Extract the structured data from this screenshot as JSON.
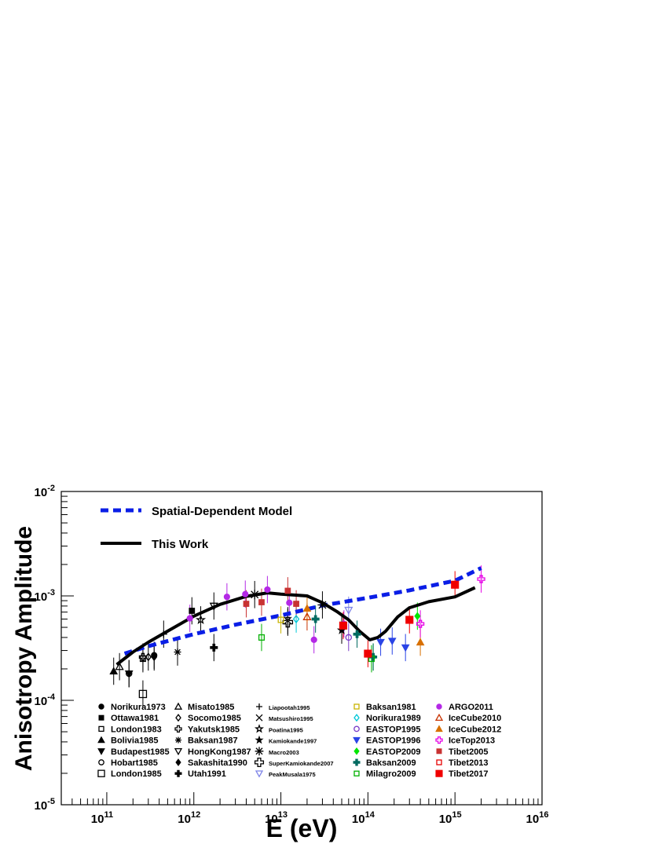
{
  "chart_data": {
    "type": "scatter",
    "title": "",
    "xlabel": "E (eV)",
    "ylabel": "Anisotropy Amplitude",
    "xscale": "log",
    "yscale": "log",
    "xlim": [
      30000000000.0,
      1e+16
    ],
    "ylim": [
      1e-05,
      0.01
    ],
    "grid": false,
    "x_ticks": [
      {
        "value": 100000000000.0,
        "base": "10",
        "exp": "11"
      },
      {
        "value": 1000000000000.0,
        "base": "10",
        "exp": "12"
      },
      {
        "value": 10000000000000.0,
        "base": "10",
        "exp": "13"
      },
      {
        "value": 100000000000000.0,
        "base": "10",
        "exp": "14"
      },
      {
        "value": 1000000000000000.0,
        "base": "10",
        "exp": "15"
      },
      {
        "value": 1e+16,
        "base": "10",
        "exp": "16"
      }
    ],
    "y_ticks": [
      {
        "value": 1e-05,
        "base": "10",
        "exp": "-5"
      },
      {
        "value": 0.0001,
        "base": "10",
        "exp": "-4"
      },
      {
        "value": 0.001,
        "base": "10",
        "exp": "-3"
      },
      {
        "value": 0.01,
        "base": "10",
        "exp": "-2"
      }
    ],
    "curves": [
      {
        "name": "Spatial-Dependent Model",
        "style": "dashed",
        "color": "#0a1ee6",
        "points": [
          [
            160000000000.0,
            0.00028
          ],
          [
            300000000000.0,
            0.00033
          ],
          [
            1000000000000.0,
            0.00043
          ],
          [
            3000000000000.0,
            0.00053
          ],
          [
            10000000000000.0,
            0.00065
          ],
          [
            30000000000000.0,
            0.00081
          ],
          [
            100000000000000.0,
            0.00096
          ],
          [
            300000000000000.0,
            0.00113
          ],
          [
            1000000000000000.0,
            0.0014
          ],
          [
            2000000000000000.0,
            0.00185
          ]
        ]
      },
      {
        "name": "This Work",
        "style": "solid",
        "color": "#000000",
        "points": [
          [
            130000000000.0,
            0.00022
          ],
          [
            200000000000.0,
            0.00029
          ],
          [
            300000000000.0,
            0.00036
          ],
          [
            500000000000.0,
            0.00046
          ],
          [
            1000000000000.0,
            0.00064
          ],
          [
            2000000000000.0,
            0.00083
          ],
          [
            4000000000000.0,
            0.00099
          ],
          [
            7000000000000.0,
            0.00107
          ],
          [
            10000000000000.0,
            0.00104
          ],
          [
            20000000000000.0,
            0.001
          ],
          [
            30000000000000.0,
            0.00086
          ],
          [
            45000000000000.0,
            0.0007
          ],
          [
            60000000000000.0,
            0.00059
          ],
          [
            80000000000000.0,
            0.00046
          ],
          [
            105000000000000.0,
            0.00038
          ],
          [
            130000000000000.0,
            0.0004
          ],
          [
            160000000000000.0,
            0.00046
          ],
          [
            220000000000000.0,
            0.00063
          ],
          [
            300000000000000.0,
            0.00077
          ],
          [
            500000000000000.0,
            0.00088
          ],
          [
            1000000000000000.0,
            0.00098
          ],
          [
            1700000000000000.0,
            0.0012
          ]
        ]
      }
    ],
    "series": [
      {
        "name": "Norikura1973",
        "marker": "circle-filled",
        "color": "#000000",
        "points": [
          [
            350000000000.0,
            0.00027
          ]
        ]
      },
      {
        "name": "Ottawa1981",
        "marker": "square-filled",
        "color": "#000000",
        "points": [
          [
            950000000000.0,
            0.00072
          ]
        ]
      },
      {
        "name": "London1983",
        "marker": "square-open",
        "color": "#000000",
        "points": [
          [
            260000000000.0,
            0.00025
          ]
        ]
      },
      {
        "name": "Bolivia1985",
        "marker": "triangle-up-filled",
        "color": "#000000",
        "points": [
          [
            120000000000.0,
            0.00019
          ]
        ]
      },
      {
        "name": "Budapest1985",
        "marker": "triangle-down-filled",
        "color": "#000000",
        "points": [
          [
            180000000000.0,
            0.00018
          ]
        ]
      },
      {
        "name": "Hobart1985",
        "marker": "circle-open",
        "color": "#000000",
        "points": [
          [
            180000000000.0,
            0.00018
          ]
        ]
      },
      {
        "name": "London1985",
        "marker": "square-open-large",
        "color": "#000000",
        "points": [
          [
            260000000000.0,
            0.000115
          ]
        ]
      },
      {
        "name": "Misato1985",
        "marker": "triangle-up-open",
        "color": "#000000",
        "points": [
          [
            140000000000.0,
            0.00021
          ]
        ]
      },
      {
        "name": "Socomo1985",
        "marker": "diamond-open",
        "color": "#000000",
        "points": [
          [
            300000000000.0,
            0.00026
          ]
        ]
      },
      {
        "name": "Yakutsk1985",
        "marker": "cross-open",
        "color": "#000000",
        "points": [
          [
            260000000000.0,
            0.00026
          ]
        ]
      },
      {
        "name": "Baksan1987",
        "marker": "asterisk",
        "color": "#000000",
        "points": [
          [
            650000000000.0,
            0.00029
          ]
        ]
      },
      {
        "name": "HongKong1987",
        "marker": "triangle-down-open",
        "color": "#000000",
        "points": [
          [
            1700000000000.0,
            0.0008
          ]
        ]
      },
      {
        "name": "Sakashita1990",
        "marker": "diamond-filled",
        "color": "#000000",
        "points": [
          [
            350000000000.0,
            0.00026
          ]
        ]
      },
      {
        "name": "Utah1991",
        "marker": "cross-filled",
        "color": "#000000",
        "points": [
          [
            1700000000000.0,
            0.00032
          ]
        ]
      },
      {
        "name": "Liapootah1995",
        "marker": "plus",
        "color": "#000000",
        "points": [
          [
            450000000000.0,
            0.00043
          ]
        ]
      },
      {
        "name": "Matsushiro1995",
        "marker": "x",
        "color": "#000000",
        "points": [
          [
            12000000000000.0,
            0.00058
          ]
        ]
      },
      {
        "name": "Poatina1995",
        "marker": "star-open",
        "color": "#000000",
        "points": [
          [
            1200000000000.0,
            0.00059
          ]
        ]
      },
      {
        "name": "Kamiokande1997",
        "marker": "star-filled",
        "color": "#000000",
        "points": [
          [
            50000000000000.0,
            0.00047
          ]
        ]
      },
      {
        "name": "Macro2003",
        "marker": "asterisk-large",
        "color": "#000000",
        "points": [
          [
            5000000000000.0,
            0.00103
          ],
          [
            30000000000000.0,
            0.00082
          ]
        ]
      },
      {
        "name": "SuperKamiokande2007",
        "marker": "cross-open-large",
        "color": "#000000",
        "points": [
          [
            12000000000000.0,
            0.00056
          ]
        ]
      },
      {
        "name": "PeakMusala1975",
        "marker": "triangle-down-open",
        "color": "#7e84e8",
        "points": [
          [
            60000000000000.0,
            0.00073
          ]
        ]
      },
      {
        "name": "Baksan1981",
        "marker": "square-open",
        "color": "#c8b400",
        "points": [
          [
            10000000000000.0,
            0.00059
          ]
        ]
      },
      {
        "name": "Norikura1989",
        "marker": "diamond-open",
        "color": "#00c8d8",
        "points": [
          [
            15000000000000.0,
            0.0006
          ]
        ]
      },
      {
        "name": "EASTOP1995",
        "marker": "circle-open",
        "color": "#7a3cc8",
        "points": [
          [
            60000000000000.0,
            0.0004
          ]
        ]
      },
      {
        "name": "EASTOP1996",
        "marker": "triangle-down-filled",
        "color": "#2a44e6",
        "points": [
          [
            140000000000000.0,
            0.00036
          ],
          [
            190000000000000.0,
            0.00037
          ],
          [
            270000000000000.0,
            0.00032
          ]
        ]
      },
      {
        "name": "EASTOP2009",
        "marker": "diamond-filled",
        "color": "#00e600",
        "points": [
          [
            115000000000000.0,
            0.00026
          ],
          [
            370000000000000.0,
            0.00064
          ]
        ]
      },
      {
        "name": "Baksan2009",
        "marker": "cross-filled",
        "color": "#006a60",
        "points": [
          [
            25000000000000.0,
            0.0006
          ],
          [
            75000000000000.0,
            0.00043
          ],
          [
            115000000000000.0,
            0.00026
          ]
        ]
      },
      {
        "name": "Milagro2009",
        "marker": "square-open",
        "color": "#00b000",
        "points": [
          [
            6000000000000.0,
            0.0004
          ],
          [
            110000000000000.0,
            0.00025
          ]
        ]
      },
      {
        "name": "ARGO2011",
        "marker": "circle-filled",
        "color": "#b428e6",
        "points": [
          [
            900000000000.0,
            0.00061
          ],
          [
            2400000000000.0,
            0.00098
          ],
          [
            3900000000000.0,
            0.00104
          ],
          [
            7000000000000.0,
            0.00115
          ],
          [
            12500000000000.0,
            0.00086
          ],
          [
            24000000000000.0,
            0.00038
          ],
          [
            53000000000000.0,
            0.00054
          ]
        ]
      },
      {
        "name": "IceCube2010",
        "marker": "triangle-up-open",
        "color": "#c83200",
        "points": [
          [
            20000000000000.0,
            0.00063
          ]
        ]
      },
      {
        "name": "IceCube2012",
        "marker": "triangle-up-filled",
        "color": "#d87000",
        "points": [
          [
            20000000000000.0,
            0.00076
          ],
          [
            400000000000000.0,
            0.00036
          ]
        ]
      },
      {
        "name": "IceTop2013",
        "marker": "cross-open",
        "color": "#e600e6",
        "points": [
          [
            400000000000000.0,
            0.00054
          ],
          [
            2000000000000000.0,
            0.00145
          ]
        ]
      },
      {
        "name": "Tibet2005",
        "marker": "square-filled",
        "color": "#c83232",
        "points": [
          [
            4000000000000.0,
            0.00084
          ],
          [
            6000000000000.0,
            0.00087
          ],
          [
            12000000000000.0,
            0.00112
          ],
          [
            15000000000000.0,
            0.00084
          ]
        ]
      },
      {
        "name": "Tibet2013",
        "marker": "square-open",
        "color": "#e60000",
        "points": []
      },
      {
        "name": "Tibet2017",
        "marker": "square-filled-large",
        "color": "#f00000",
        "points": [
          [
            52000000000000.0,
            0.00052
          ],
          [
            100000000000000.0,
            0.00028
          ],
          [
            300000000000000.0,
            0.00059
          ],
          [
            1000000000000000.0,
            0.00128
          ]
        ]
      }
    ],
    "legend": {
      "placement": "top-left",
      "line_entries": [
        "Spatial-Dependent Model",
        "This Work"
      ],
      "marker_columns": [
        [
          "Norikura1973",
          "Ottawa1981",
          "London1983",
          "Bolivia1985",
          "Budapest1985",
          "Hobart1985",
          "London1985"
        ],
        [
          "Misato1985",
          "Socomo1985",
          "Yakutsk1985",
          "Baksan1987",
          "HongKong1987",
          "Sakashita1990",
          "Utah1991"
        ],
        [
          "Liapootah1995",
          "Matsushiro1995",
          "Poatina1995",
          "Kamiokande1997",
          "Macro2003",
          "SuperKamiokande2007",
          "PeakMusala1975"
        ],
        [
          "Baksan1981",
          "Norikura1989",
          "EASTOP1995",
          "EASTOP1996",
          "EASTOP2009",
          "Baksan2009",
          "Milagro2009"
        ],
        [
          "ARGO2011",
          "IceCube2010",
          "IceCube2012",
          "IceTop2013",
          "Tibet2005",
          "Tibet2013",
          "Tibet2017"
        ]
      ]
    }
  }
}
